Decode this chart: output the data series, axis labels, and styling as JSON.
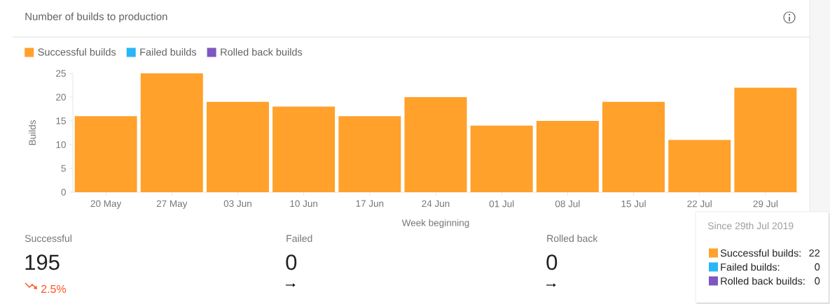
{
  "chart_data": {
    "type": "bar",
    "title": "Number of builds to production",
    "xlabel": "Week beginning",
    "ylabel": "Builds",
    "categories": [
      "20 May",
      "27 May",
      "03 Jun",
      "10 Jun",
      "17 Jun",
      "24 Jun",
      "01 Jul",
      "08 Jul",
      "15 Jul",
      "22 Jul",
      "29 Jul"
    ],
    "series": [
      {
        "name": "Successful builds",
        "color": "#ffa12b",
        "values": [
          16,
          25,
          19,
          18,
          16,
          20,
          14,
          15,
          19,
          11,
          22
        ]
      },
      {
        "name": "Failed builds",
        "color": "#29b6f6",
        "values": [
          0,
          0,
          0,
          0,
          0,
          0,
          0,
          0,
          0,
          0,
          0
        ]
      },
      {
        "name": "Rolled back builds",
        "color": "#7e57c2",
        "values": [
          0,
          0,
          0,
          0,
          0,
          0,
          0,
          0,
          0,
          0,
          0
        ]
      }
    ],
    "stacked": true,
    "ylim": [
      0,
      25
    ],
    "yticks": [
      0,
      5,
      10,
      15,
      20,
      25
    ],
    "legend": "top left",
    "annotations": [
      "Since 29th Jul 2019",
      "Successful builds:",
      "22",
      "Failed builds:",
      "0",
      "Rolled back builds:",
      "0",
      "Successful",
      "195",
      "2.5%",
      "Failed",
      "0",
      "Rolled back",
      "0"
    ]
  }
}
